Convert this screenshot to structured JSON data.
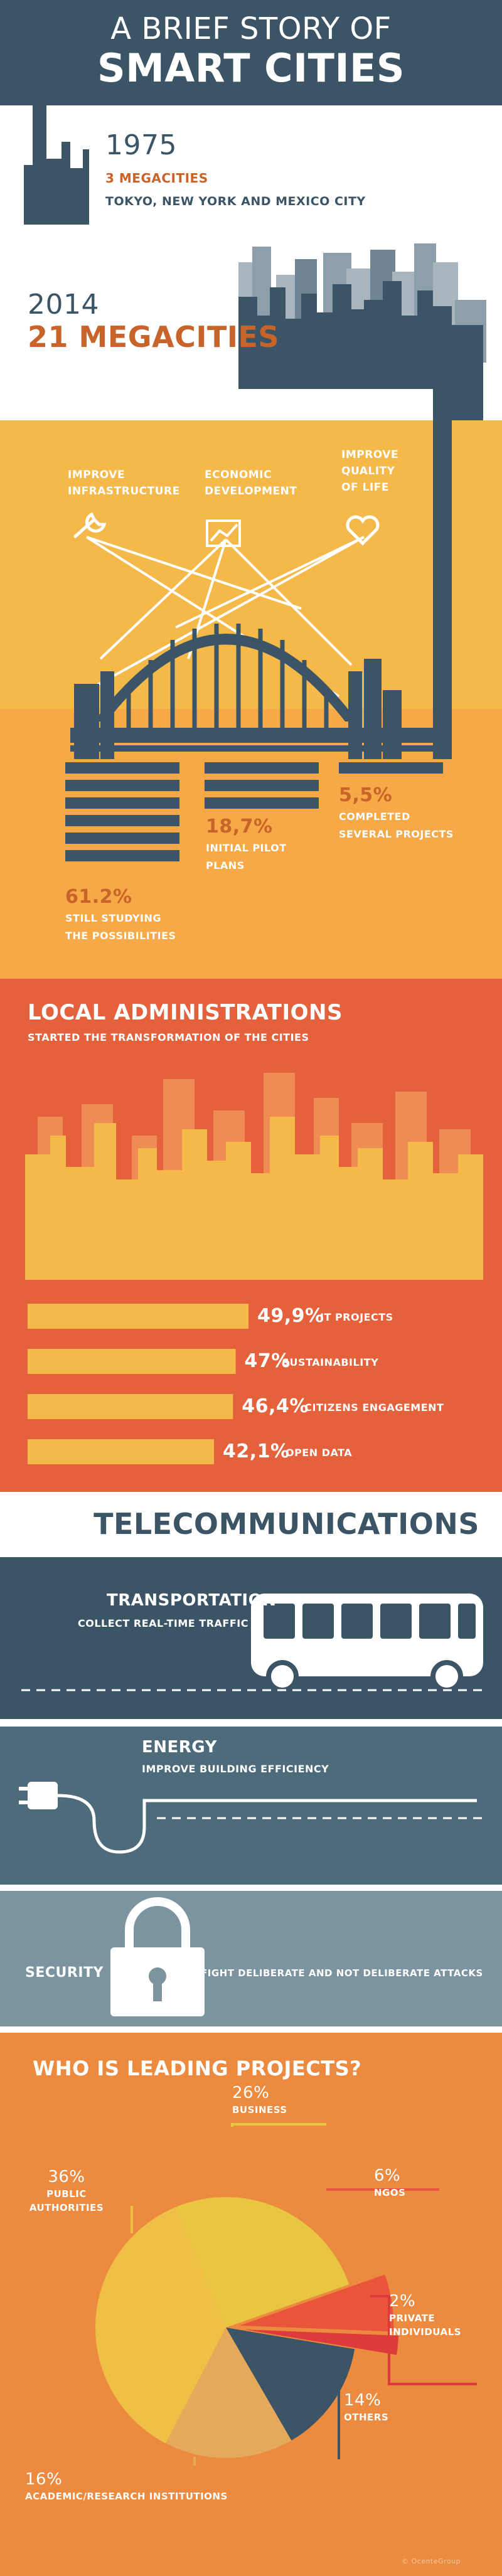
{
  "header": {
    "line1": "A BRIEF STORY OF",
    "line2": "SMART CITIES"
  },
  "era1975": {
    "year": "1975",
    "count": "3 MEGACITIES",
    "cities": "TOKYO, NEW YORK AND MEXICO CITY"
  },
  "era2014": {
    "year": "2014",
    "count": "21 MEGACITIES"
  },
  "goals": [
    {
      "icon": "wrench-icon",
      "lines": [
        "IMPROVE",
        "INFRASTRUCTURE"
      ]
    },
    {
      "icon": "chart-icon",
      "lines": [
        "ECONOMIC",
        "DEVELOPMENT"
      ]
    },
    {
      "icon": "heart-icon",
      "lines": [
        "IMPROVE",
        "QUALITY",
        "OF LIFE"
      ]
    }
  ],
  "stages": [
    {
      "value": "61.2%",
      "lines": [
        "STILL STUDYING",
        "THE POSSIBILITIES"
      ]
    },
    {
      "value": "18,7%",
      "lines": [
        "INITIAL PILOT",
        "PLANS"
      ]
    },
    {
      "value": "5,5%",
      "lines": [
        "COMPLETED",
        "SEVERAL PROJECTS"
      ]
    }
  ],
  "local": {
    "title": "LOCAL ADMINISTRATIONS",
    "subtitle": "STARTED THE TRANSFORMATION OF THE CITIES",
    "bars": [
      {
        "value": 49.9,
        "pct": "49,9%",
        "label": "IT PROJECTS"
      },
      {
        "value": 47,
        "pct": "47%",
        "label": "SUSTAINABILITY"
      },
      {
        "value": 46.4,
        "pct": "46,4%",
        "label": "CITIZENS ENGAGEMENT"
      },
      {
        "value": 42.1,
        "pct": "42,1%",
        "label": "OPEN DATA"
      }
    ]
  },
  "telecom": {
    "title": "TELECOMMUNICATIONS",
    "transport": {
      "title": "TRANSPORTATION",
      "subtitle": "COLLECT REAL-TIME TRAFFIC"
    },
    "energy": {
      "title": "ENERGY",
      "subtitle": "IMPROVE BUILDING EFFICIENCY"
    },
    "security": {
      "title": "SECURITY",
      "subtitle": "FIGHT DELIBERATE AND NOT DELIBERATE ATTACKS"
    }
  },
  "leaders": {
    "title": "WHO IS LEADING PROJECTS?",
    "credit": "© OcenteGroup"
  },
  "chart_data": {
    "type": "pie",
    "slices": [
      {
        "label": "BUSINESS",
        "pct": "26%",
        "value": 26,
        "color": "#e9c541"
      },
      {
        "label": "NGOs",
        "pct": "6%",
        "value": 6,
        "color": "#e8553a"
      },
      {
        "label": "PRIVATE INDIVIDUALS",
        "pct": "2%",
        "value": 2,
        "color": "#dd3a3c"
      },
      {
        "label": "OTHERS",
        "pct": "14%",
        "value": 14,
        "color": "#3b5566"
      },
      {
        "label": "ACADEMIC/RESEARCH INSTITUTIONS",
        "pct": "16%",
        "value": 16,
        "color": "#e4a95a"
      },
      {
        "label": "PUBLIC AUTHORITIES",
        "pct": "36%",
        "value": 36,
        "color": "#f0bf45"
      }
    ]
  },
  "colors": {
    "navy": "#3b5566",
    "orange_text": "#c8632a",
    "yellow": "#f5b94a",
    "red_orange": "#e4613c",
    "slate": "#4d6b7a",
    "slate_light": "#7c93a0",
    "pie_bg": "#ec8a3f"
  }
}
